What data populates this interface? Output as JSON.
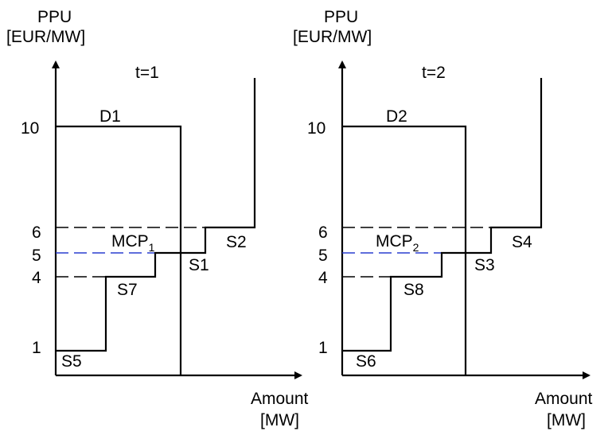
{
  "colors": {
    "axis": "#000000",
    "mcp_line": "#2a3fd0"
  },
  "panels": [
    {
      "y_axis_label": "PPU",
      "y_axis_unit": "[EUR/MW]",
      "x_axis_label": "Amount",
      "x_axis_unit": "[MW]",
      "time_label": "t=1",
      "y_ticks": [
        "10",
        "6",
        "5",
        "4",
        "1"
      ],
      "demand_label": "D1",
      "mcp_label": "MCP",
      "mcp_subscript": "1",
      "supply_labels": {
        "s5": "S5",
        "s7": "S7",
        "s1": "S1",
        "s2": "S2"
      }
    },
    {
      "y_axis_label": "PPU",
      "y_axis_unit": "[EUR/MW]",
      "x_axis_label": "Amount",
      "x_axis_unit": "[MW]",
      "time_label": "t=2",
      "y_ticks": [
        "10",
        "6",
        "5",
        "4",
        "1"
      ],
      "demand_label": "D2",
      "mcp_label": "MCP",
      "mcp_subscript": "2",
      "supply_labels": {
        "s6": "S6",
        "s8": "S8",
        "s3": "S3",
        "s4": "S4"
      }
    }
  ]
}
